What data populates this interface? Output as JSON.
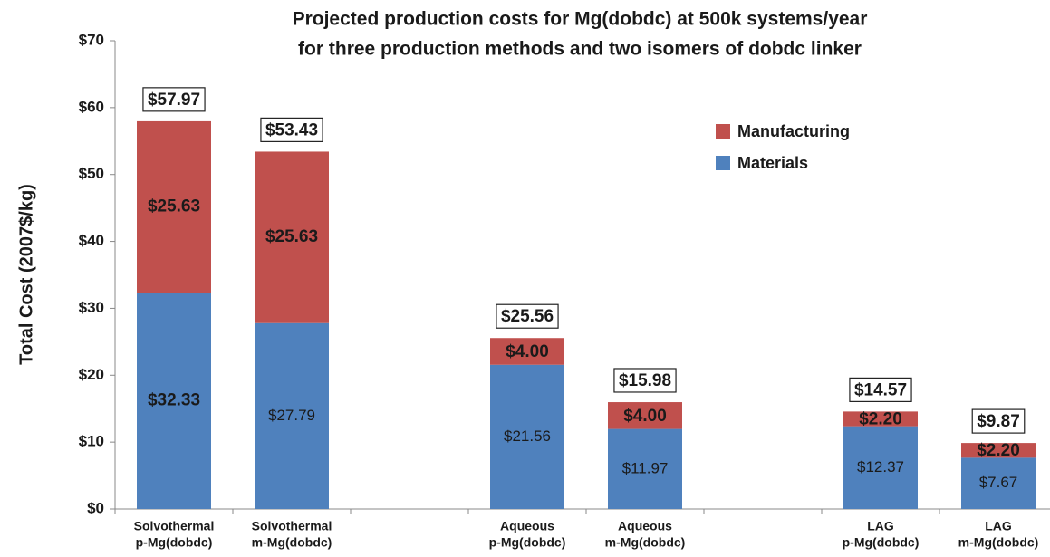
{
  "chart_data": {
    "type": "stacked_bar",
    "title": [
      "Projected production costs for Mg(dobdc) at 500k systems/year",
      "for three production methods and two isomers of dobdc linker"
    ],
    "y_label": "Total Cost (2007$/kg)",
    "categories": [
      [
        "Solvothermal",
        "p-Mg(dobdc)"
      ],
      [
        "Solvothermal",
        "m-Mg(dobdc)"
      ],
      null,
      [
        "Aqueous",
        "p-Mg(dobdc)"
      ],
      [
        "Aqueous",
        "m-Mg(dobdc)"
      ],
      null,
      [
        "LAG",
        "p-Mg(dobdc)"
      ],
      [
        "LAG",
        "m-Mg(dobdc)"
      ]
    ],
    "series": [
      {
        "name": "Materials",
        "color": "#4f81bd",
        "values": [
          32.33,
          27.79,
          null,
          21.56,
          11.97,
          null,
          12.37,
          7.67
        ],
        "value_labels": [
          "$32.33",
          "$27.79",
          null,
          "$21.56",
          "$11.97",
          null,
          "$12.37",
          "$7.67"
        ]
      },
      {
        "name": "Manufacturing",
        "color": "#c0504d",
        "values": [
          25.63,
          25.63,
          null,
          4.0,
          4.0,
          null,
          2.2,
          2.2
        ],
        "value_labels": [
          "$25.63",
          "$25.63",
          null,
          "$4.00",
          "$4.00",
          null,
          "$2.20",
          "$2.20"
        ]
      }
    ],
    "totals": [
      57.97,
      53.43,
      null,
      25.56,
      15.98,
      null,
      14.57,
      9.87
    ],
    "total_labels": [
      "$57.97",
      "$53.43",
      null,
      "$25.56",
      "$15.98",
      null,
      "$14.57",
      "$9.87"
    ],
    "ylim": [
      0,
      70
    ],
    "yticks": [
      {
        "value": 0,
        "label": "$0"
      },
      {
        "value": 10,
        "label": "$10"
      },
      {
        "value": 20,
        "label": "$20"
      },
      {
        "value": 30,
        "label": "$30"
      },
      {
        "value": 40,
        "label": "$40"
      },
      {
        "value": 50,
        "label": "$50"
      },
      {
        "value": 60,
        "label": "$60"
      },
      {
        "value": 70,
        "label": "$70"
      }
    ],
    "legend": "upper right"
  }
}
